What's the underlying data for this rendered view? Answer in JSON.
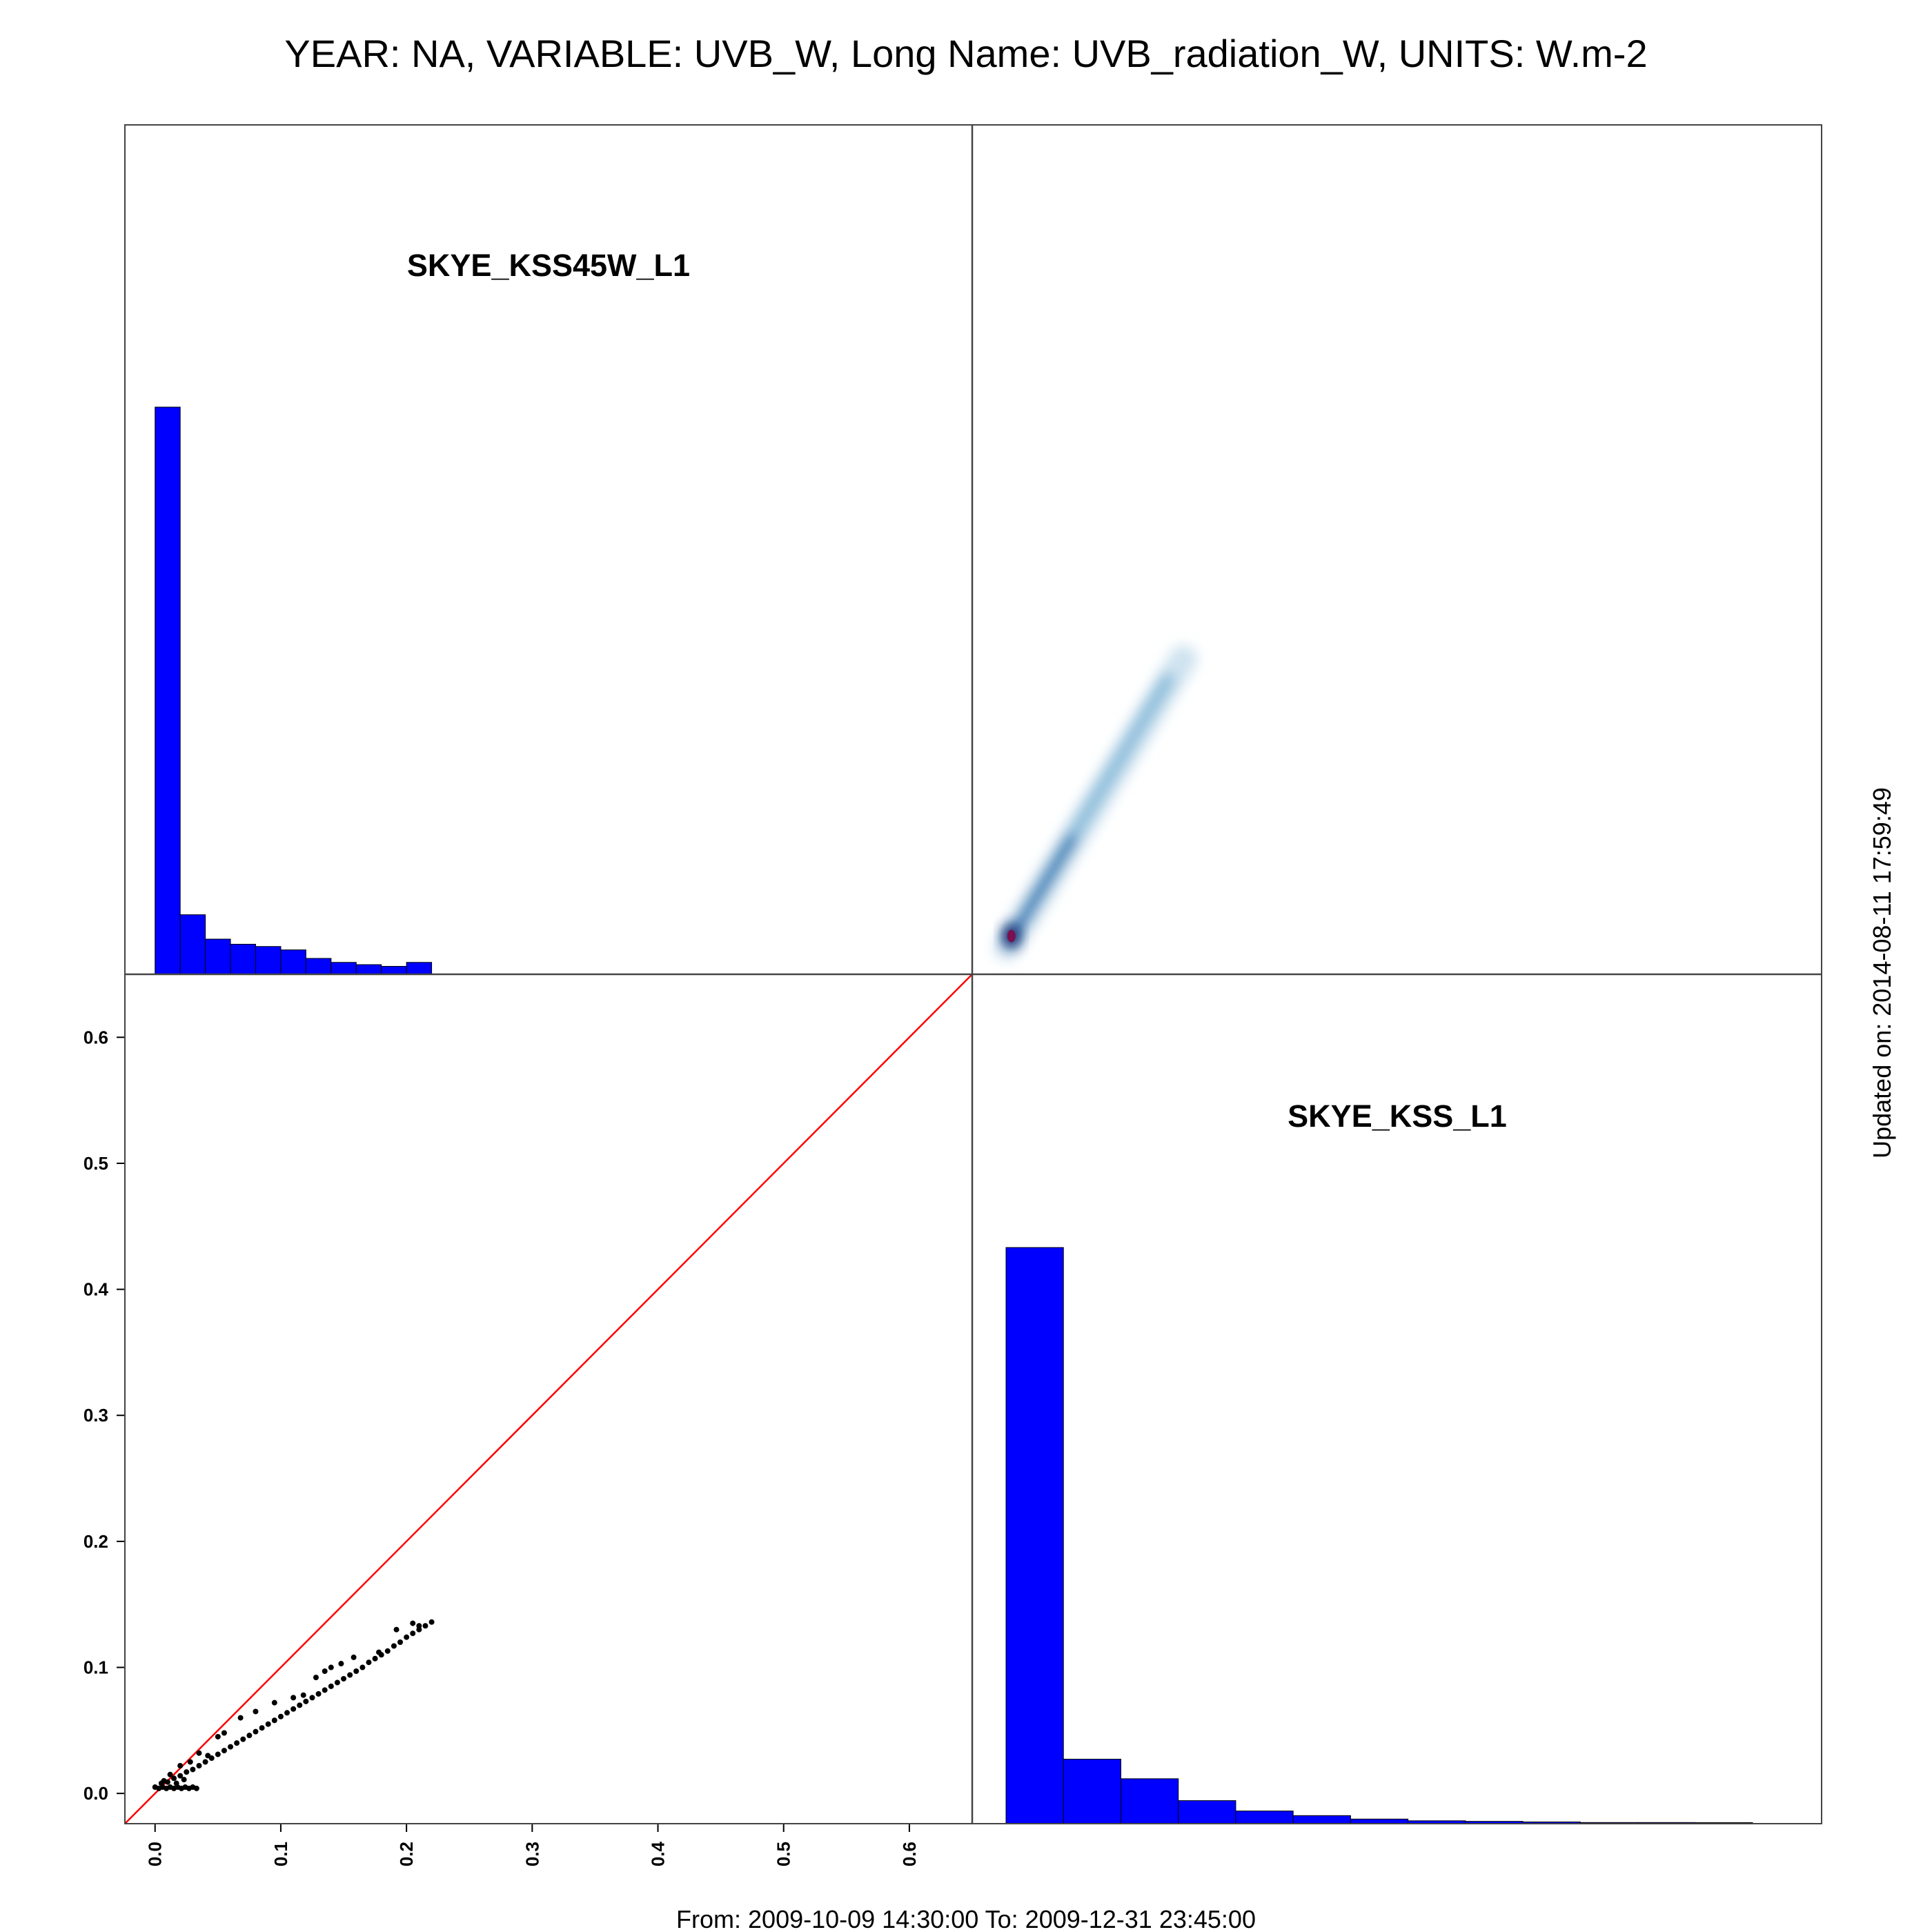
{
  "title": "YEAR: NA, VARIABLE: UVB_W, Long Name: UVB_radiation_W, UNITS: W.m-2",
  "footer": "From: 2009-10-09 14:30:00 To: 2009-12-31 23:45:00",
  "updated": "Updated on: 2014-08-11 17:59:49",
  "colors": {
    "histogram": "#0000FF",
    "identity_line": "#FF0000",
    "points": "#000000",
    "density": "#2a7fb8"
  },
  "chart_data": [
    {
      "type": "bar",
      "panel": "top-left",
      "title": "SKYE_KSS45W_L1",
      "bin_edges": [
        0.0,
        0.02,
        0.04,
        0.06,
        0.08,
        0.1,
        0.12,
        0.14,
        0.16,
        0.18,
        0.2,
        0.22
      ],
      "relative_heights": [
        1.0,
        0.105,
        0.062,
        0.053,
        0.049,
        0.043,
        0.028,
        0.021,
        0.017,
        0.014,
        0.021
      ]
    },
    {
      "type": "heatmap",
      "panel": "top-right",
      "description_source": "smoothed density of SKYE_KSS45W_L1 (x) vs SKYE_KSS_L1 (y)",
      "x_range": [
        0.0,
        0.22
      ],
      "y_range": [
        0.0,
        0.135
      ],
      "peak": [
        0.005,
        0.005
      ]
    },
    {
      "type": "scatter",
      "panel": "bottom-left",
      "xlim": [
        -0.024,
        0.65
      ],
      "ylim": [
        -0.024,
        0.65
      ],
      "x_ticks": [
        "0.0",
        "0.1",
        "0.2",
        "0.3",
        "0.4",
        "0.5",
        "0.6"
      ],
      "y_ticks": [
        "0.0",
        "0.1",
        "0.2",
        "0.3",
        "0.4",
        "0.5",
        "0.6"
      ],
      "identity_line": true,
      "points": [
        [
          0.0,
          0.005
        ],
        [
          0.003,
          0.004
        ],
        [
          0.006,
          0.005
        ],
        [
          0.009,
          0.004
        ],
        [
          0.012,
          0.005
        ],
        [
          0.015,
          0.004
        ],
        [
          0.018,
          0.005
        ],
        [
          0.021,
          0.004
        ],
        [
          0.024,
          0.005
        ],
        [
          0.027,
          0.004
        ],
        [
          0.03,
          0.005
        ],
        [
          0.033,
          0.004
        ],
        [
          0.005,
          0.008
        ],
        [
          0.01,
          0.009
        ],
        [
          0.015,
          0.012
        ],
        [
          0.02,
          0.014
        ],
        [
          0.025,
          0.017
        ],
        [
          0.03,
          0.019
        ],
        [
          0.035,
          0.022
        ],
        [
          0.04,
          0.025
        ],
        [
          0.045,
          0.028
        ],
        [
          0.05,
          0.031
        ],
        [
          0.055,
          0.034
        ],
        [
          0.06,
          0.037
        ],
        [
          0.065,
          0.04
        ],
        [
          0.07,
          0.043
        ],
        [
          0.075,
          0.046
        ],
        [
          0.08,
          0.049
        ],
        [
          0.085,
          0.052
        ],
        [
          0.09,
          0.055
        ],
        [
          0.095,
          0.058
        ],
        [
          0.1,
          0.061
        ],
        [
          0.105,
          0.064
        ],
        [
          0.11,
          0.067
        ],
        [
          0.115,
          0.07
        ],
        [
          0.12,
          0.073
        ],
        [
          0.125,
          0.076
        ],
        [
          0.13,
          0.079
        ],
        [
          0.135,
          0.082
        ],
        [
          0.14,
          0.085
        ],
        [
          0.145,
          0.088
        ],
        [
          0.15,
          0.091
        ],
        [
          0.155,
          0.094
        ],
        [
          0.16,
          0.097
        ],
        [
          0.165,
          0.1
        ],
        [
          0.17,
          0.104
        ],
        [
          0.175,
          0.107
        ],
        [
          0.18,
          0.11
        ],
        [
          0.185,
          0.113
        ],
        [
          0.19,
          0.117
        ],
        [
          0.195,
          0.12
        ],
        [
          0.2,
          0.124
        ],
        [
          0.205,
          0.127
        ],
        [
          0.21,
          0.13
        ],
        [
          0.215,
          0.133
        ],
        [
          0.22,
          0.136
        ],
        [
          0.012,
          0.015
        ],
        [
          0.02,
          0.022
        ],
        [
          0.028,
          0.025
        ],
        [
          0.035,
          0.032
        ],
        [
          0.042,
          0.03
        ],
        [
          0.05,
          0.045
        ],
        [
          0.055,
          0.048
        ],
        [
          0.068,
          0.06
        ],
        [
          0.08,
          0.065
        ],
        [
          0.095,
          0.072
        ],
        [
          0.11,
          0.076
        ],
        [
          0.118,
          0.078
        ],
        [
          0.128,
          0.092
        ],
        [
          0.135,
          0.097
        ],
        [
          0.14,
          0.1
        ],
        [
          0.148,
          0.103
        ],
        [
          0.158,
          0.108
        ],
        [
          0.178,
          0.112
        ],
        [
          0.192,
          0.13
        ],
        [
          0.205,
          0.135
        ],
        [
          0.21,
          0.133
        ],
        [
          0.007,
          0.01
        ],
        [
          0.017,
          0.008
        ],
        [
          0.023,
          0.011
        ]
      ]
    },
    {
      "type": "bar",
      "panel": "bottom-right",
      "title": "SKYE_KSS_L1",
      "bin_edges": [
        0.0,
        0.01,
        0.02,
        0.03,
        0.04,
        0.05,
        0.06,
        0.07,
        0.08,
        0.09,
        0.1,
        0.11,
        0.12,
        0.13
      ],
      "relative_heights": [
        1.0,
        0.112,
        0.078,
        0.04,
        0.022,
        0.014,
        0.008,
        0.005,
        0.004,
        0.003,
        0.002,
        0.002,
        0.0
      ]
    }
  ]
}
